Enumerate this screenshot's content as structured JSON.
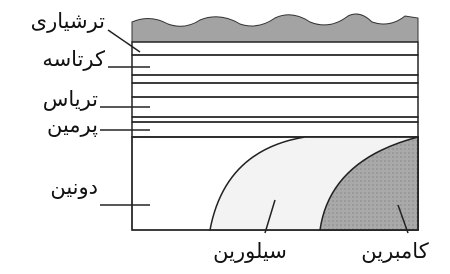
{
  "labels": {
    "tertiary": "ترشیاری",
    "cretaceous": "کرتاسه",
    "triassic": "تریاس",
    "permian": "پرمین",
    "devonian": "دونین",
    "silurian": "سیلورین",
    "cambrian": "کامبرین"
  }
}
